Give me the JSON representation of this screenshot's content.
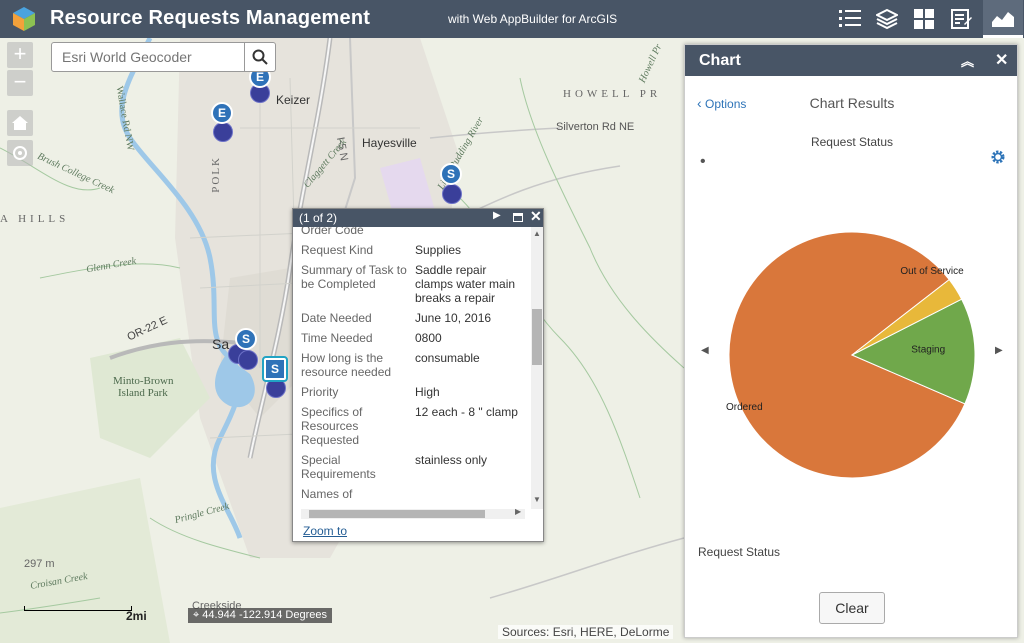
{
  "header": {
    "title": "Resource Requests Management",
    "subtitle": "with Web AppBuilder for ArcGIS",
    "tools": [
      "list-icon",
      "layers-icon",
      "grid-icon",
      "edit-icon",
      "chart-icon"
    ]
  },
  "map": {
    "search_placeholder": "Esri World Geocoder",
    "labels": {
      "keizer": "Keizer",
      "hayesville": "Hayesville",
      "salem": "Sa",
      "polk": "POLK",
      "howell": "HOWELL PR",
      "silverton": "Silverton Rd NE",
      "i5": "I-5 N",
      "or22": "OR-22 E",
      "minto": "Minto-Brown",
      "island": "Island Park",
      "hills": "A HILLS",
      "glenn": "Glenn Creek",
      "brush": "Brush College Creek",
      "wallace": "Wallace Rd NW",
      "claggett": "Claggett Creek",
      "little": "Little Pudding River",
      "pringle": "Pringle Creek",
      "croisan": "Croisan Creek",
      "creekside": "Creekside",
      "elev": "297 m",
      "howell2": "Howell Pr"
    },
    "markers": [
      "E",
      "E",
      "S",
      "S",
      "S"
    ],
    "scalebar_label": "2mi",
    "coordinates": "44.944 -122.914 Degrees",
    "attribution": "Sources: Esri, HERE, DeLorme"
  },
  "popup": {
    "title": "(1 of 2)",
    "rows": [
      {
        "label": "Order Code",
        "value": ""
      },
      {
        "label": "Request Kind",
        "value": "Supplies"
      },
      {
        "label": "Summary of Task to be Completed",
        "value": "Saddle repair clamps water main breaks a repair"
      },
      {
        "label": "Date Needed",
        "value": "June 10, 2016"
      },
      {
        "label": "Time Needed",
        "value": "0800"
      },
      {
        "label": "How long is the resource needed",
        "value": "consumable"
      },
      {
        "label": "Priority",
        "value": "High"
      },
      {
        "label": "Specifics of Resources Requested",
        "value": "12 each - 8 \" clamp"
      },
      {
        "label": "Special Requirements",
        "value": "stainless only"
      },
      {
        "label": "Names of",
        "value": ""
      }
    ],
    "zoom_link": "Zoom to"
  },
  "chart_panel": {
    "title": "Chart",
    "options_link": "Options",
    "results_title": "Chart Results",
    "footer_label": "Request Status",
    "clear_button": "Clear"
  },
  "chart_data": {
    "type": "pie",
    "title": "Request Status",
    "slices": [
      {
        "label": "Ordered",
        "value": 83,
        "color": "#d9773b"
      },
      {
        "label": "Staging",
        "value": 14,
        "color": "#70a84b"
      },
      {
        "label": "Out of Service",
        "value": 3,
        "color": "#e8b83a"
      }
    ]
  }
}
